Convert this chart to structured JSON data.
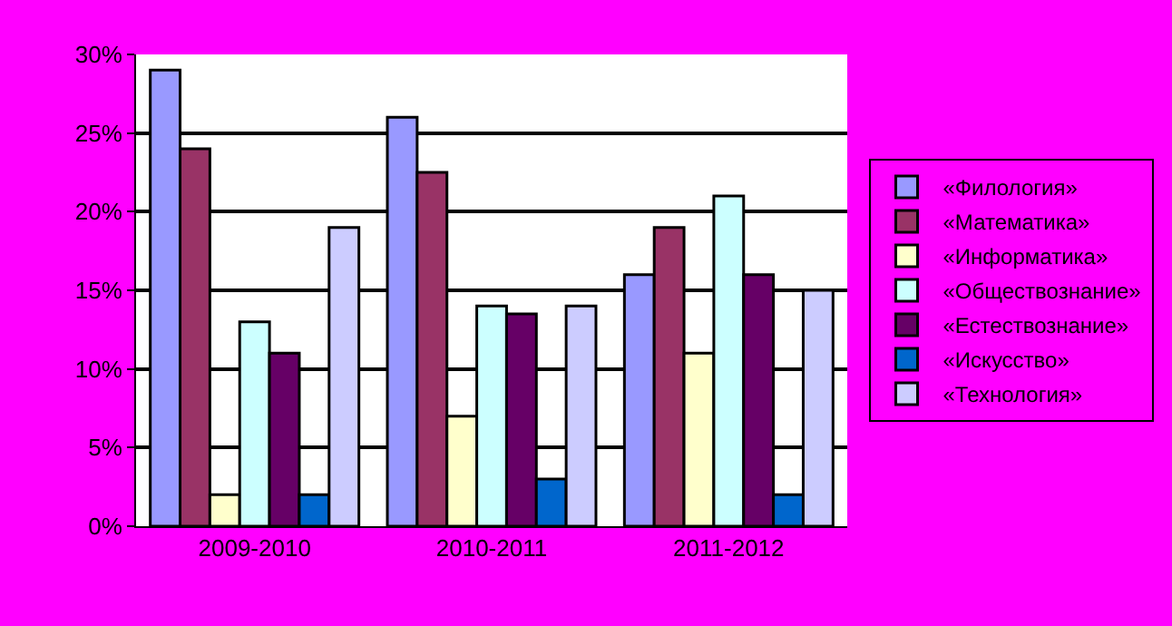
{
  "chart_data": {
    "type": "bar",
    "categories": [
      "2009-2010",
      "2010-2011",
      "2011-2012"
    ],
    "series": [
      {
        "name": "«Филология»",
        "color": "#9999ff",
        "values": [
          29,
          26,
          16
        ]
      },
      {
        "name": "«Математика»",
        "color": "#993366",
        "values": [
          24,
          22.5,
          19
        ]
      },
      {
        "name": "«Информатика»",
        "color": "#ffffcc",
        "values": [
          2,
          7,
          11
        ]
      },
      {
        "name": "«Обществознание»",
        "color": "#ccffff",
        "values": [
          13,
          14,
          21
        ]
      },
      {
        "name": "«Естествознание»",
        "color": "#660066",
        "values": [
          11,
          13.5,
          16
        ]
      },
      {
        "name": "«Искусство»",
        "color": "#0066cc",
        "values": [
          2,
          3,
          2
        ]
      },
      {
        "name": "«Технология»",
        "color": "#ccccff",
        "values": [
          19,
          14,
          15
        ]
      }
    ],
    "ylim": [
      0,
      30
    ],
    "yticks": [
      {
        "value": 0,
        "label": "0%"
      },
      {
        "value": 5,
        "label": "5%"
      },
      {
        "value": 10,
        "label": "10%"
      },
      {
        "value": 15,
        "label": "15%"
      },
      {
        "value": 20,
        "label": "20%"
      },
      {
        "value": 25,
        "label": "25%"
      },
      {
        "value": 30,
        "label": "30%"
      }
    ],
    "grid": "y",
    "legend": "right"
  }
}
